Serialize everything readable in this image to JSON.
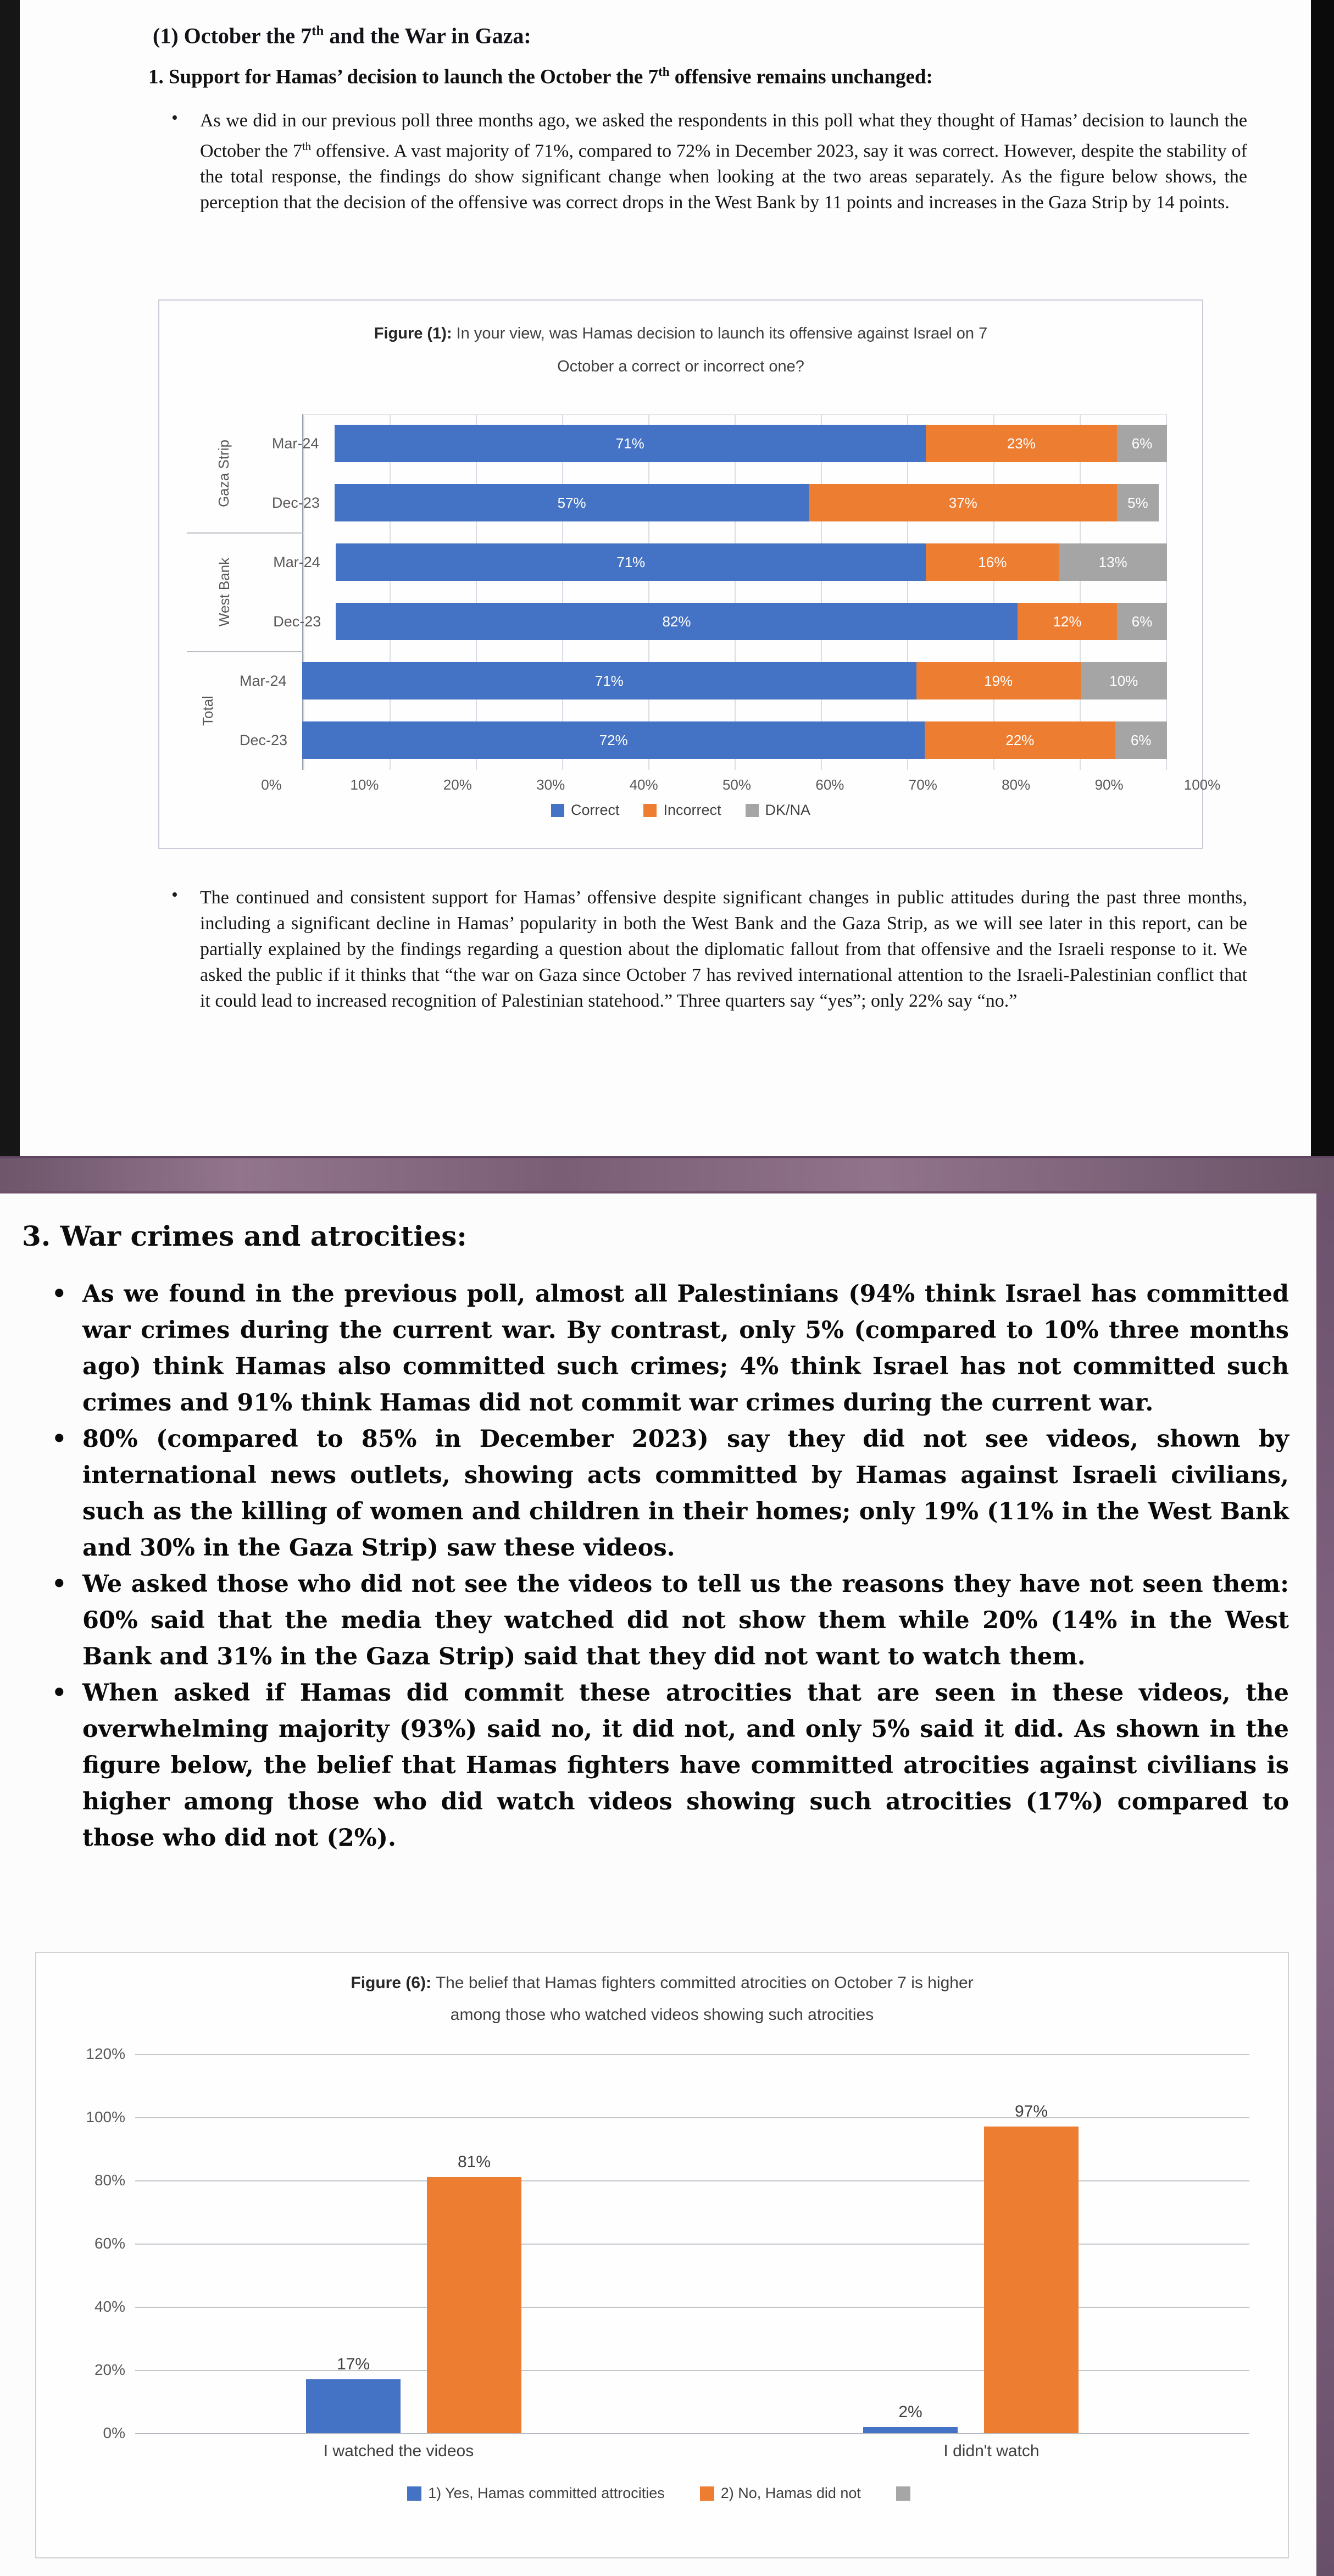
{
  "page1": {
    "heading": {
      "pre": "(1) October the 7",
      "sup": "th",
      "post": " and the War in Gaza:"
    },
    "subheading": {
      "pre": "1. Support for Hamas’ decision to launch the October the 7",
      "sup": "th",
      "post": " offensive remains unchanged:"
    },
    "bullet1": {
      "pre": "As we did in our previous poll three months ago, we asked the respondents in this poll what they thought of Hamas’ decision to launch the October the 7",
      "sup": "th",
      "post": " offensive. A vast majority of 71%, compared to 72% in December 2023, say it was correct. However, despite the stability of the total response, the findings do show significant change when looking at the two areas separately. As the figure below shows, the perception that the decision of the offensive was correct drops in the West Bank by 11 points and increases in the Gaza Strip by 14 points."
    },
    "bullet2": "The continued and consistent support for Hamas’ offensive despite significant changes in public attitudes during the past three months, including a significant decline in Hamas’ popularity in both the West Bank and the Gaza Strip, as we will see later in this report, can be partially explained by the findings regarding a question about the diplomatic fallout from that offensive and the Israeli response to it. We asked the public if it thinks that “the war on Gaza since October 7 has revived international attention to the Israeli-Palestinian conflict that it could lead to increased recognition of Palestinian statehood.” Three quarters say “yes”; only 22% say “no.”"
  },
  "page2": {
    "heading": "3. War crimes and atrocities:",
    "bullets": [
      "As we found in the previous poll, almost all Palestinians (94% think Israel has committed war crimes during the current war. By contrast, only 5% (compared to 10% three months ago) think Hamas also committed such crimes; 4% think Israel has not committed such crimes and 91% think Hamas did not commit war crimes during the current war.",
      "80% (compared to 85% in December 2023) say they did not see videos, shown by international news outlets, showing acts committed by Hamas against Israeli civilians, such as the killing of women and children in their homes; only 19% (11% in the West Bank and 30% in the Gaza Strip) saw these videos.",
      "We asked those who did not see the videos to tell us the reasons they have not seen them: 60% said that the media they watched did not show them while 20% (14% in the West Bank and 31% in the Gaza Strip) said that they did not want to watch them.",
      "When asked if Hamas did commit these atrocities that are seen in these videos, the overwhelming majority (93%) said no, it did not, and only 5% said it did. As shown in the figure below, the belief that Hamas fighters have committed atrocities against civilians is higher among those who did watch videos showing such atrocities (17%) compared to those who did not (2%)."
    ]
  },
  "chart_data": [
    {
      "type": "bar",
      "orientation": "horizontal-stacked",
      "title_prefix": "Figure (1):",
      "title_line1": " In your view, was Hamas decision to launch its offensive against Israel on 7",
      "title_line2": "October a correct or incorrect one?",
      "series_names": [
        "Correct",
        "Incorrect",
        "DK/NA"
      ],
      "series_colors": [
        "#4472c4",
        "#ed7d31",
        "#a5a5a5"
      ],
      "groups": [
        {
          "label": "Gaza Strip",
          "rows": [
            {
              "period": "Mar-24",
              "values": [
                71,
                23,
                6
              ]
            },
            {
              "period": "Dec-23",
              "values": [
                57,
                37,
                5
              ]
            }
          ]
        },
        {
          "label": "West Bank",
          "rows": [
            {
              "period": "Mar-24",
              "values": [
                71,
                16,
                13
              ]
            },
            {
              "period": "Dec-23",
              "values": [
                82,
                12,
                6
              ]
            }
          ]
        },
        {
          "label": "Total",
          "rows": [
            {
              "period": "Mar-24",
              "values": [
                71,
                19,
                10
              ]
            },
            {
              "period": "Dec-23",
              "values": [
                72,
                22,
                6
              ]
            }
          ]
        }
      ],
      "xlim": [
        0,
        100
      ],
      "x_ticks": [
        "0%",
        "10%",
        "20%",
        "30%",
        "40%",
        "50%",
        "60%",
        "70%",
        "80%",
        "90%",
        "100%"
      ],
      "legend_position": "bottom",
      "grid": true
    },
    {
      "type": "bar",
      "orientation": "vertical-grouped",
      "title_prefix": "Figure (6):",
      "title_line1": " The belief that Hamas fighters committed atrocities on October 7 is higher",
      "title_line2": "among those who watched videos showing such atrocities",
      "categories": [
        "I watched the videos",
        "I didn't watch"
      ],
      "series": [
        {
          "name": "1) Yes, Hamas committed attrocities",
          "color": "#4472c4",
          "values": [
            17,
            2
          ]
        },
        {
          "name": "2) No, Hamas did not",
          "color": "#ed7d31",
          "values": [
            81,
            97
          ]
        }
      ],
      "extra_legend_swatch": {
        "label": "",
        "color": "#a6a6a6"
      },
      "ylim": [
        0,
        120
      ],
      "y_ticks": [
        "0%",
        "20%",
        "40%",
        "60%",
        "80%",
        "100%",
        "120%"
      ],
      "legend_position": "bottom",
      "grid": true
    }
  ]
}
